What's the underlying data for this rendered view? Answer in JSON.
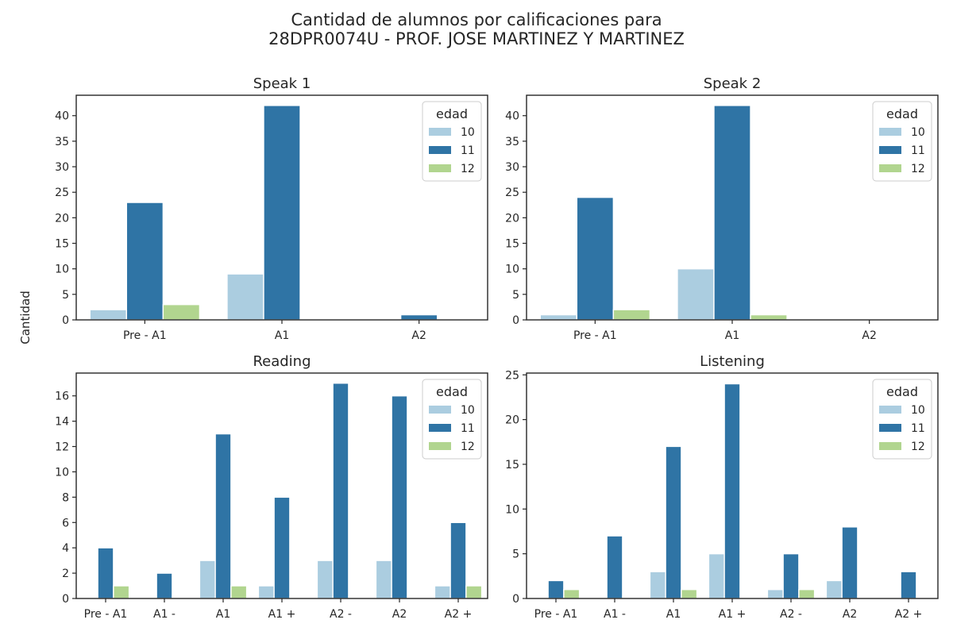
{
  "figure": {
    "title_line1": "Cantidad de alumnos por calificaciones para",
    "title_line2": "28DPR0074U - PROF. JOSE MARTINEZ Y MARTINEZ",
    "ylabel": "Cantidad"
  },
  "colors": {
    "10": "#abcde0",
    "11": "#2f74a5",
    "12": "#b1d58f"
  },
  "chart_data": [
    {
      "type": "bar",
      "title": "Speak 1",
      "categories": [
        "Pre - A1",
        "A1",
        "A2"
      ],
      "series": [
        {
          "name": "10",
          "values": [
            2,
            9,
            0
          ]
        },
        {
          "name": "11",
          "values": [
            23,
            42,
            1
          ]
        },
        {
          "name": "12",
          "values": [
            3,
            0,
            0
          ]
        }
      ],
      "ylim": [
        0,
        44
      ],
      "yticks": [
        0,
        5,
        10,
        15,
        20,
        25,
        30,
        35,
        40
      ],
      "legend": {
        "title": "edad",
        "labels": [
          "10",
          "11",
          "12"
        ],
        "position": "top-right"
      }
    },
    {
      "type": "bar",
      "title": "Speak 2",
      "categories": [
        "Pre - A1",
        "A1",
        "A2"
      ],
      "series": [
        {
          "name": "10",
          "values": [
            1,
            10,
            0
          ]
        },
        {
          "name": "11",
          "values": [
            24,
            42,
            0
          ]
        },
        {
          "name": "12",
          "values": [
            2,
            1,
            0
          ]
        }
      ],
      "ylim": [
        0,
        44
      ],
      "yticks": [
        0,
        5,
        10,
        15,
        20,
        25,
        30,
        35,
        40
      ],
      "legend": {
        "title": "edad",
        "labels": [
          "10",
          "11",
          "12"
        ],
        "position": "top-right"
      }
    },
    {
      "type": "bar",
      "title": "Reading",
      "categories": [
        "Pre - A1",
        "A1 -",
        "A1",
        "A1 +",
        "A2 -",
        "A2",
        "A2 +"
      ],
      "series": [
        {
          "name": "10",
          "values": [
            0,
            0,
            3,
            1,
            3,
            3,
            1
          ]
        },
        {
          "name": "11",
          "values": [
            4,
            2,
            13,
            8,
            17,
            16,
            6
          ]
        },
        {
          "name": "12",
          "values": [
            1,
            0,
            1,
            0,
            0,
            0,
            1
          ]
        }
      ],
      "ylim": [
        0,
        17.8
      ],
      "yticks": [
        0,
        2,
        4,
        6,
        8,
        10,
        12,
        14,
        16
      ],
      "legend": {
        "title": "edad",
        "labels": [
          "10",
          "11",
          "12"
        ],
        "position": "top-right"
      }
    },
    {
      "type": "bar",
      "title": "Listening",
      "categories": [
        "Pre - A1",
        "A1 -",
        "A1",
        "A1 +",
        "A2 -",
        "A2",
        "A2 +"
      ],
      "series": [
        {
          "name": "10",
          "values": [
            0,
            0,
            3,
            5,
            1,
            2,
            0
          ]
        },
        {
          "name": "11",
          "values": [
            2,
            7,
            17,
            24,
            5,
            8,
            3
          ]
        },
        {
          "name": "12",
          "values": [
            1,
            0,
            1,
            0,
            1,
            0,
            0
          ]
        }
      ],
      "ylim": [
        0,
        25.2
      ],
      "yticks": [
        0,
        5,
        10,
        15,
        20,
        25
      ],
      "legend": {
        "title": "edad",
        "labels": [
          "10",
          "11",
          "12"
        ],
        "position": "top-right"
      }
    }
  ]
}
